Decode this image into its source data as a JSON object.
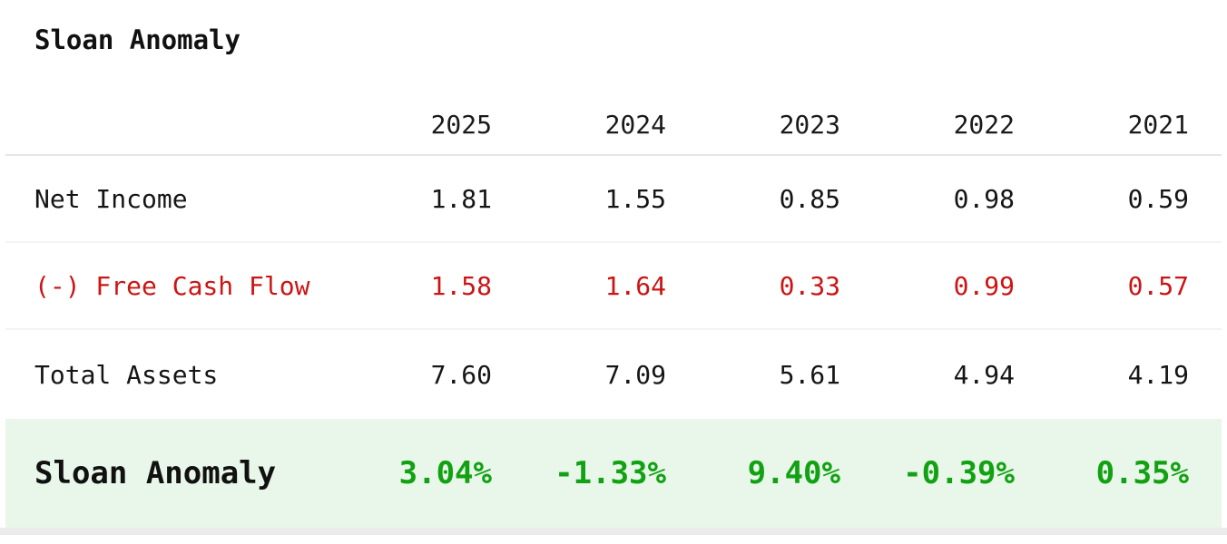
{
  "title": "Sloan Anomaly",
  "colors": {
    "negative_row_text": "#cc1414",
    "highlight_value_text": "#12a112",
    "highlight_row_background": "#e8f7e9",
    "header_divider": "#e6e6e6",
    "row_divider": "#f3f3f3",
    "bottom_bar": "#ebebeb",
    "default_text": "#151515"
  },
  "chart_data": {
    "type": "table",
    "title": "Sloan Anomaly",
    "columns": [
      "2025",
      "2024",
      "2023",
      "2022",
      "2021"
    ],
    "rows": [
      {
        "label": "Net Income",
        "values": [
          "1.81",
          "1.55",
          "0.85",
          "0.98",
          "0.59"
        ],
        "negative": false,
        "highlight": false
      },
      {
        "label": "(-) Free Cash Flow",
        "values": [
          "1.58",
          "1.64",
          "0.33",
          "0.99",
          "0.57"
        ],
        "negative": true,
        "highlight": false
      },
      {
        "label": "Total Assets",
        "values": [
          "7.60",
          "7.09",
          "5.61",
          "4.94",
          "4.19"
        ],
        "negative": false,
        "highlight": false
      },
      {
        "label": "Sloan Anomaly",
        "values": [
          "3.04%",
          "-1.33%",
          "9.40%",
          "-0.39%",
          "0.35%"
        ],
        "negative": false,
        "highlight": true
      }
    ]
  }
}
